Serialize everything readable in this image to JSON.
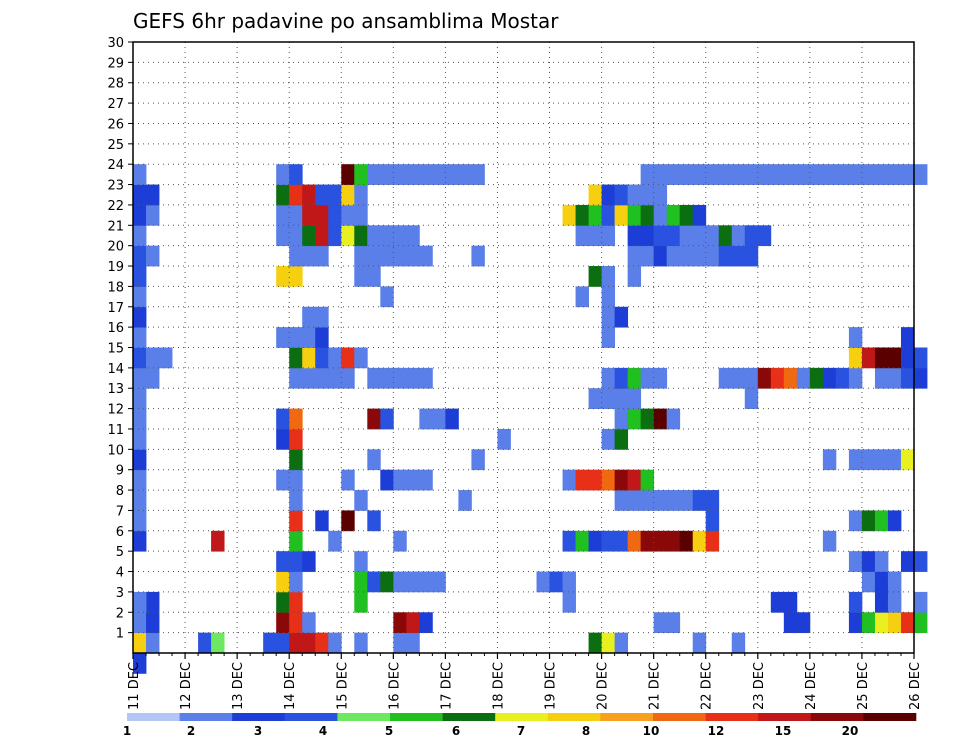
{
  "chart_data": {
    "type": "heatmap",
    "title": "GEFS 6hr padavine po ansamblima Mostar",
    "x_tick_labels": [
      "11 DEC",
      "12 DEC",
      "13 DEC",
      "14 DEC",
      "15 DEC",
      "16 DEC",
      "17 DEC",
      "18 DEC",
      "19 DEC",
      "20 DEC",
      "21 DEC",
      "22 DEC",
      "23 DEC",
      "24 DEC",
      "25 DEC",
      "26 DEC"
    ],
    "y_tick_labels": [
      "1",
      "2",
      "3",
      "4",
      "5",
      "6",
      "7",
      "8",
      "9",
      "10",
      "11",
      "12",
      "13",
      "14",
      "15",
      "16",
      "17",
      "18",
      "19",
      "20",
      "21",
      "22",
      "23",
      "24",
      "25",
      "26",
      "27",
      "28",
      "29",
      "30"
    ],
    "x_range_days": [
      11,
      26
    ],
    "y_range": [
      0,
      30
    ],
    "time_step_hours": 6,
    "grid": "dotted",
    "colorbar": {
      "labels": [
        "1",
        "2",
        "3",
        "4",
        "5",
        "6",
        "7",
        "8",
        "10",
        "12",
        "15",
        "20"
      ],
      "colors": [
        "#b3c6f5",
        "#5b7fe8",
        "#1c3ed6",
        "#2a52e0",
        "#6ee860",
        "#1fc020",
        "#0b6e10",
        "#e8f020",
        "#f6d010",
        "#f7a020",
        "#f06810",
        "#e83018",
        "#c01818",
        "#8a0808",
        "#5a0000"
      ]
    },
    "cells": [
      [
        0,
        0,
        2
      ],
      [
        0,
        1,
        8
      ],
      [
        1,
        1,
        1
      ],
      [
        5,
        1,
        3
      ],
      [
        6,
        1,
        4
      ],
      [
        10,
        1,
        3
      ],
      [
        11,
        1,
        3
      ],
      [
        12,
        1,
        12
      ],
      [
        13,
        1,
        12
      ],
      [
        14,
        1,
        11
      ],
      [
        15,
        1,
        1
      ],
      [
        17,
        1,
        1
      ],
      [
        20,
        1,
        1
      ],
      [
        21,
        1,
        1
      ],
      [
        35,
        1,
        6
      ],
      [
        36,
        1,
        7
      ],
      [
        37,
        1,
        1
      ],
      [
        43,
        1,
        1
      ],
      [
        46,
        1,
        1
      ],
      [
        0,
        2,
        1
      ],
      [
        1,
        2,
        2
      ],
      [
        1,
        3,
        2
      ],
      [
        11,
        2,
        13
      ],
      [
        12,
        2,
        11
      ],
      [
        13,
        2,
        1
      ],
      [
        20,
        2,
        13
      ],
      [
        21,
        2,
        12
      ],
      [
        22,
        2,
        2
      ],
      [
        40,
        2,
        1
      ],
      [
        41,
        2,
        1
      ],
      [
        50,
        2,
        2
      ],
      [
        51,
        2,
        2
      ],
      [
        55,
        2,
        2
      ],
      [
        56,
        2,
        5
      ],
      [
        57,
        2,
        7
      ],
      [
        58,
        2,
        8
      ],
      [
        59,
        2,
        11
      ],
      [
        60,
        2,
        5
      ],
      [
        0,
        3,
        1
      ],
      [
        11,
        3,
        6
      ],
      [
        12,
        3,
        11
      ],
      [
        17,
        3,
        5
      ],
      [
        33,
        3,
        1
      ],
      [
        49,
        3,
        2
      ],
      [
        50,
        3,
        2
      ],
      [
        55,
        3,
        3
      ],
      [
        57,
        3,
        2
      ],
      [
        58,
        3,
        1
      ],
      [
        60,
        3,
        1
      ],
      [
        11,
        4,
        8
      ],
      [
        12,
        4,
        1
      ],
      [
        17,
        4,
        5
      ],
      [
        18,
        4,
        3
      ],
      [
        19,
        4,
        6
      ],
      [
        20,
        4,
        1
      ],
      [
        21,
        4,
        1
      ],
      [
        22,
        4,
        1
      ],
      [
        23,
        4,
        1
      ],
      [
        31,
        4,
        1
      ],
      [
        32,
        4,
        3
      ],
      [
        33,
        4,
        1
      ],
      [
        56,
        4,
        1
      ],
      [
        57,
        4,
        2
      ],
      [
        58,
        4,
        1
      ],
      [
        11,
        5,
        3
      ],
      [
        12,
        5,
        3
      ],
      [
        13,
        5,
        2
      ],
      [
        17,
        5,
        1
      ],
      [
        55,
        5,
        1
      ],
      [
        56,
        5,
        2
      ],
      [
        57,
        5,
        1
      ],
      [
        59,
        5,
        2
      ],
      [
        60,
        5,
        3
      ],
      [
        0,
        6,
        2
      ],
      [
        6,
        6,
        12
      ],
      [
        12,
        6,
        5
      ],
      [
        15,
        6,
        1
      ],
      [
        20,
        6,
        1
      ],
      [
        33,
        6,
        3
      ],
      [
        34,
        6,
        5
      ],
      [
        35,
        6,
        2
      ],
      [
        36,
        6,
        3
      ],
      [
        37,
        6,
        3
      ],
      [
        38,
        6,
        10
      ],
      [
        39,
        6,
        13
      ],
      [
        40,
        6,
        13
      ],
      [
        41,
        6,
        13
      ],
      [
        42,
        6,
        14
      ],
      [
        43,
        6,
        8
      ],
      [
        44,
        6,
        11
      ],
      [
        53,
        6,
        1
      ],
      [
        0,
        7,
        1
      ],
      [
        12,
        7,
        11
      ],
      [
        14,
        7,
        2
      ],
      [
        16,
        7,
        14
      ],
      [
        18,
        7,
        3
      ],
      [
        44,
        7,
        3
      ],
      [
        55,
        7,
        1
      ],
      [
        56,
        7,
        6
      ],
      [
        57,
        7,
        5
      ],
      [
        58,
        7,
        2
      ],
      [
        0,
        8,
        1
      ],
      [
        12,
        8,
        1
      ],
      [
        17,
        8,
        1
      ],
      [
        25,
        8,
        1
      ],
      [
        37,
        8,
        1
      ],
      [
        38,
        8,
        1
      ],
      [
        39,
        8,
        1
      ],
      [
        40,
        8,
        1
      ],
      [
        41,
        8,
        1
      ],
      [
        42,
        8,
        1
      ],
      [
        43,
        8,
        3
      ],
      [
        44,
        8,
        3
      ],
      [
        0,
        9,
        1
      ],
      [
        11,
        9,
        1
      ],
      [
        12,
        9,
        1
      ],
      [
        16,
        9,
        1
      ],
      [
        19,
        9,
        2
      ],
      [
        20,
        9,
        1
      ],
      [
        21,
        9,
        1
      ],
      [
        22,
        9,
        1
      ],
      [
        33,
        9,
        1
      ],
      [
        34,
        9,
        11
      ],
      [
        35,
        9,
        11
      ],
      [
        36,
        9,
        10
      ],
      [
        37,
        9,
        13
      ],
      [
        38,
        9,
        12
      ],
      [
        39,
        9,
        5
      ],
      [
        0,
        10,
        2
      ],
      [
        12,
        10,
        6
      ],
      [
        18,
        10,
        1
      ],
      [
        26,
        10,
        1
      ],
      [
        53,
        10,
        1
      ],
      [
        55,
        10,
        1
      ],
      [
        56,
        10,
        1
      ],
      [
        57,
        10,
        1
      ],
      [
        58,
        10,
        1
      ],
      [
        59,
        10,
        7
      ],
      [
        0,
        11,
        1
      ],
      [
        11,
        11,
        2
      ],
      [
        12,
        11,
        11
      ],
      [
        28,
        11,
        1
      ],
      [
        36,
        11,
        1
      ],
      [
        37,
        11,
        6
      ],
      [
        0,
        12,
        1
      ],
      [
        11,
        12,
        3
      ],
      [
        12,
        12,
        10
      ],
      [
        18,
        12,
        13
      ],
      [
        19,
        12,
        3
      ],
      [
        22,
        12,
        1
      ],
      [
        23,
        12,
        1
      ],
      [
        24,
        12,
        2
      ],
      [
        37,
        12,
        1
      ],
      [
        38,
        12,
        5
      ],
      [
        39,
        12,
        6
      ],
      [
        40,
        12,
        14
      ],
      [
        41,
        12,
        1
      ],
      [
        0,
        13,
        1
      ],
      [
        35,
        13,
        1
      ],
      [
        36,
        13,
        1
      ],
      [
        37,
        13,
        1
      ],
      [
        38,
        13,
        1
      ],
      [
        47,
        13,
        1
      ],
      [
        0,
        14,
        1
      ],
      [
        1,
        14,
        1
      ],
      [
        12,
        14,
        1
      ],
      [
        13,
        14,
        1
      ],
      [
        14,
        14,
        1
      ],
      [
        15,
        14,
        1
      ],
      [
        16,
        14,
        1
      ],
      [
        18,
        14,
        1
      ],
      [
        19,
        14,
        1
      ],
      [
        20,
        14,
        1
      ],
      [
        21,
        14,
        1
      ],
      [
        22,
        14,
        1
      ],
      [
        36,
        14,
        1
      ],
      [
        37,
        14,
        3
      ],
      [
        38,
        14,
        5
      ],
      [
        39,
        14,
        1
      ],
      [
        40,
        14,
        1
      ],
      [
        45,
        14,
        1
      ],
      [
        46,
        14,
        1
      ],
      [
        47,
        14,
        1
      ],
      [
        48,
        14,
        13
      ],
      [
        49,
        14,
        11
      ],
      [
        50,
        14,
        10
      ],
      [
        51,
        14,
        1
      ],
      [
        52,
        14,
        6
      ],
      [
        53,
        14,
        2
      ],
      [
        54,
        14,
        3
      ],
      [
        55,
        14,
        1
      ],
      [
        57,
        14,
        1
      ],
      [
        58,
        14,
        1
      ],
      [
        59,
        14,
        3
      ],
      [
        60,
        14,
        2
      ],
      [
        0,
        15,
        3
      ],
      [
        1,
        15,
        1
      ],
      [
        2,
        15,
        1
      ],
      [
        12,
        15,
        6
      ],
      [
        13,
        15,
        8
      ],
      [
        14,
        15,
        3
      ],
      [
        15,
        15,
        1
      ],
      [
        16,
        15,
        11
      ],
      [
        17,
        15,
        1
      ],
      [
        55,
        15,
        8
      ],
      [
        56,
        15,
        12
      ],
      [
        57,
        15,
        14
      ],
      [
        58,
        15,
        14
      ],
      [
        59,
        15,
        2
      ],
      [
        60,
        15,
        3
      ],
      [
        0,
        16,
        1
      ],
      [
        11,
        16,
        1
      ],
      [
        12,
        16,
        1
      ],
      [
        13,
        16,
        1
      ],
      [
        14,
        16,
        2
      ],
      [
        36,
        16,
        1
      ],
      [
        55,
        16,
        1
      ],
      [
        59,
        16,
        2
      ],
      [
        0,
        17,
        2
      ],
      [
        13,
        17,
        1
      ],
      [
        14,
        17,
        1
      ],
      [
        36,
        17,
        1
      ],
      [
        37,
        17,
        2
      ],
      [
        0,
        18,
        1
      ],
      [
        19,
        18,
        1
      ],
      [
        34,
        18,
        1
      ],
      [
        36,
        18,
        1
      ],
      [
        0,
        19,
        3
      ],
      [
        11,
        19,
        8
      ],
      [
        12,
        19,
        8
      ],
      [
        17,
        19,
        1
      ],
      [
        18,
        19,
        1
      ],
      [
        35,
        19,
        6
      ],
      [
        36,
        19,
        1
      ],
      [
        38,
        19,
        1
      ],
      [
        0,
        20,
        3
      ],
      [
        1,
        20,
        1
      ],
      [
        12,
        20,
        1
      ],
      [
        13,
        20,
        1
      ],
      [
        14,
        20,
        1
      ],
      [
        17,
        20,
        1
      ],
      [
        18,
        20,
        1
      ],
      [
        19,
        20,
        1
      ],
      [
        20,
        20,
        1
      ],
      [
        21,
        20,
        1
      ],
      [
        22,
        20,
        1
      ],
      [
        26,
        20,
        1
      ],
      [
        38,
        20,
        1
      ],
      [
        39,
        20,
        1
      ],
      [
        40,
        20,
        2
      ],
      [
        41,
        20,
        1
      ],
      [
        42,
        20,
        1
      ],
      [
        43,
        20,
        1
      ],
      [
        44,
        20,
        1
      ],
      [
        45,
        20,
        3
      ],
      [
        46,
        20,
        3
      ],
      [
        47,
        20,
        3
      ],
      [
        0,
        21,
        1
      ],
      [
        11,
        21,
        1
      ],
      [
        12,
        21,
        1
      ],
      [
        13,
        21,
        6
      ],
      [
        14,
        21,
        12
      ],
      [
        15,
        21,
        3
      ],
      [
        16,
        21,
        7
      ],
      [
        17,
        21,
        6
      ],
      [
        18,
        21,
        1
      ],
      [
        19,
        21,
        1
      ],
      [
        20,
        21,
        1
      ],
      [
        21,
        21,
        1
      ],
      [
        34,
        21,
        1
      ],
      [
        35,
        21,
        1
      ],
      [
        36,
        21,
        1
      ],
      [
        38,
        21,
        2
      ],
      [
        39,
        21,
        2
      ],
      [
        40,
        21,
        3
      ],
      [
        41,
        21,
        3
      ],
      [
        42,
        21,
        1
      ],
      [
        43,
        21,
        1
      ],
      [
        44,
        21,
        1
      ],
      [
        45,
        21,
        6
      ],
      [
        46,
        21,
        1
      ],
      [
        47,
        21,
        3
      ],
      [
        48,
        21,
        3
      ],
      [
        0,
        22,
        2
      ],
      [
        1,
        22,
        1
      ],
      [
        11,
        22,
        1
      ],
      [
        12,
        22,
        1
      ],
      [
        13,
        22,
        12
      ],
      [
        14,
        22,
        12
      ],
      [
        15,
        22,
        3
      ],
      [
        16,
        22,
        1
      ],
      [
        17,
        22,
        1
      ],
      [
        33,
        22,
        8
      ],
      [
        34,
        22,
        6
      ],
      [
        35,
        22,
        5
      ],
      [
        36,
        22,
        3
      ],
      [
        37,
        22,
        8
      ],
      [
        38,
        22,
        5
      ],
      [
        39,
        22,
        6
      ],
      [
        40,
        22,
        1
      ],
      [
        41,
        22,
        5
      ],
      [
        42,
        22,
        6
      ],
      [
        43,
        22,
        2
      ],
      [
        0,
        23,
        2
      ],
      [
        1,
        23,
        2
      ],
      [
        11,
        23,
        6
      ],
      [
        12,
        23,
        11
      ],
      [
        13,
        23,
        12
      ],
      [
        14,
        23,
        3
      ],
      [
        15,
        23,
        3
      ],
      [
        16,
        23,
        8
      ],
      [
        17,
        23,
        1
      ],
      [
        35,
        23,
        8
      ],
      [
        36,
        23,
        2
      ],
      [
        37,
        23,
        3
      ],
      [
        38,
        23,
        1
      ],
      [
        39,
        23,
        1
      ],
      [
        40,
        23,
        1
      ],
      [
        0,
        24,
        1
      ],
      [
        11,
        24,
        1
      ],
      [
        12,
        24,
        3
      ],
      [
        16,
        24,
        14
      ],
      [
        17,
        24,
        5
      ],
      [
        18,
        24,
        1
      ],
      [
        19,
        24,
        1
      ],
      [
        20,
        24,
        1
      ],
      [
        21,
        24,
        1
      ],
      [
        22,
        24,
        1
      ],
      [
        23,
        24,
        1
      ],
      [
        24,
        24,
        1
      ],
      [
        25,
        24,
        1
      ],
      [
        26,
        24,
        1
      ],
      [
        39,
        24,
        1
      ],
      [
        40,
        24,
        1
      ],
      [
        41,
        24,
        1
      ],
      [
        42,
        24,
        1
      ],
      [
        43,
        24,
        1
      ],
      [
        44,
        24,
        1
      ],
      [
        45,
        24,
        1
      ],
      [
        46,
        24,
        1
      ],
      [
        47,
        24,
        1
      ],
      [
        48,
        24,
        1
      ],
      [
        49,
        24,
        1
      ],
      [
        50,
        24,
        1
      ],
      [
        51,
        24,
        1
      ],
      [
        52,
        24,
        1
      ],
      [
        53,
        24,
        1
      ],
      [
        54,
        24,
        1
      ],
      [
        55,
        24,
        1
      ],
      [
        56,
        24,
        1
      ],
      [
        57,
        24,
        1
      ],
      [
        58,
        24,
        1
      ],
      [
        59,
        24,
        1
      ],
      [
        60,
        24,
        1
      ]
    ]
  }
}
